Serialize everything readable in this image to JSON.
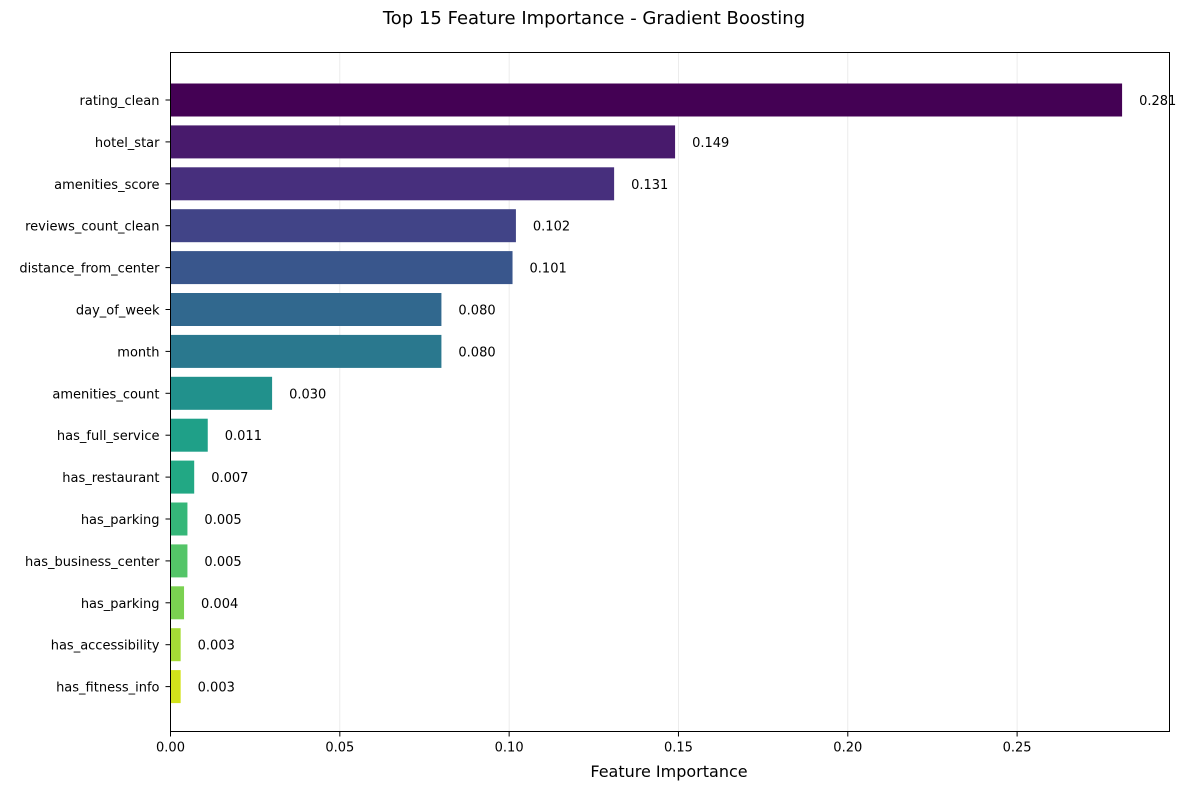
{
  "chart_data": {
    "type": "bar",
    "orientation": "horizontal",
    "title": "Top 15 Feature Importance - Gradient Boosting",
    "xlabel": "Feature Importance",
    "ylabel": "",
    "xlim": [
      0,
      0.295
    ],
    "xticks": [
      0.0,
      0.05,
      0.1,
      0.15,
      0.2,
      0.25
    ],
    "xtick_labels": [
      "0.00",
      "0.05",
      "0.10",
      "0.15",
      "0.20",
      "0.25"
    ],
    "grid": "vertical lines on",
    "categories": [
      "rating_clean",
      "hotel_star",
      "amenities_score",
      "reviews_count_clean",
      "distance_from_center",
      "day_of_week",
      "month",
      "amenities_count",
      "has_full_service",
      "has_restaurant",
      "has_parking",
      "has_business_center",
      "has_parking",
      "has_accessibility",
      "has_fitness_info"
    ],
    "values": [
      0.281,
      0.149,
      0.131,
      0.102,
      0.101,
      0.08,
      0.08,
      0.03,
      0.011,
      0.007,
      0.005,
      0.005,
      0.004,
      0.003,
      0.003
    ],
    "value_labels": [
      "0.281",
      "0.149",
      "0.131",
      "0.102",
      "0.101",
      "0.080",
      "0.080",
      "0.030",
      "0.011",
      "0.007",
      "0.005",
      "0.005",
      "0.004",
      "0.003",
      "0.003"
    ],
    "colors": [
      "#440154",
      "#481a6c",
      "#472f7d",
      "#414487",
      "#39568c",
      "#31688e",
      "#2a788e",
      "#21918c",
      "#1fa088",
      "#22a884",
      "#35b779",
      "#54c568",
      "#7ad151",
      "#a5db36",
      "#d2e21b",
      "#fde725"
    ]
  }
}
